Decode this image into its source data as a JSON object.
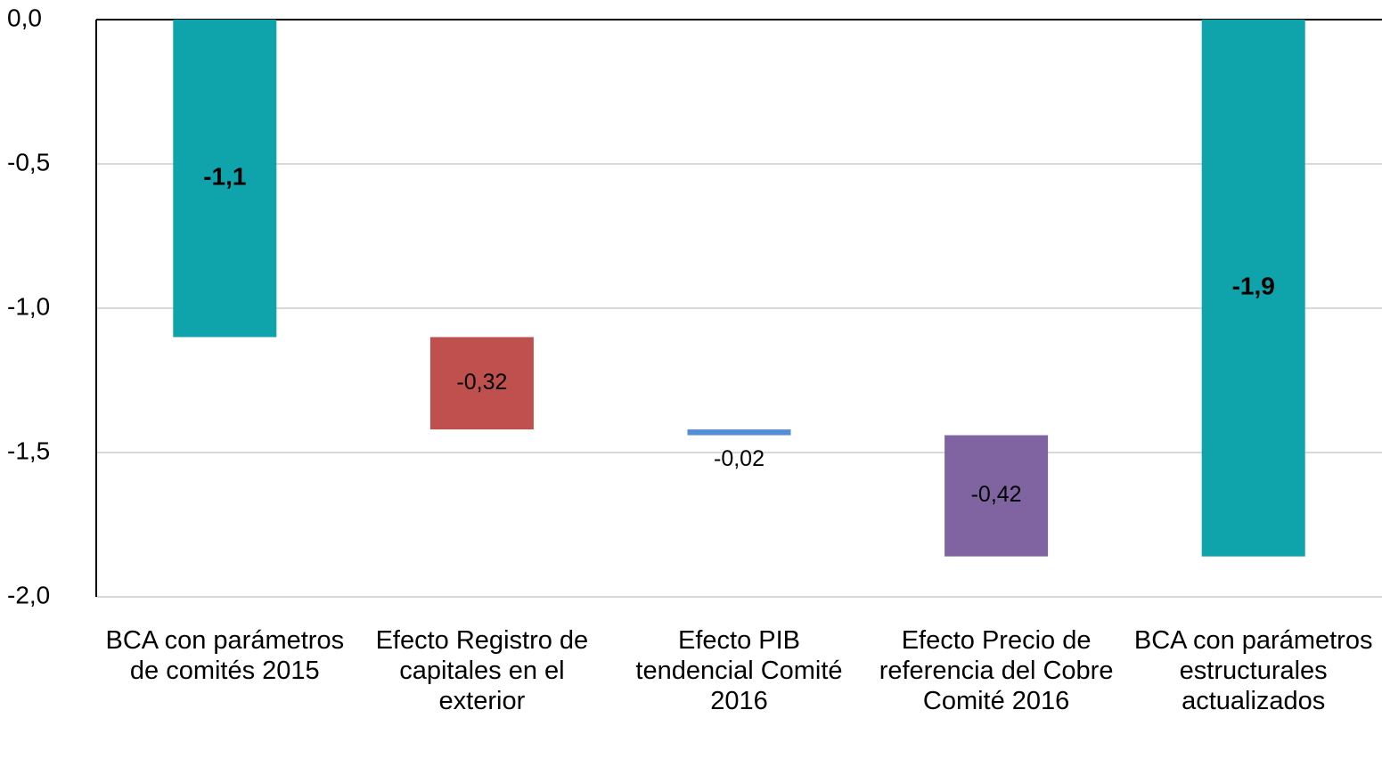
{
  "chart_data": {
    "type": "waterfall",
    "categories": [
      "BCA con parámetros de comités 2015",
      "Efecto Registro de capitales en el exterior",
      "Efecto PIB tendencial Comité 2016",
      "Efecto Precio de referencia del Cobre Comité 2016",
      "BCA con parámetros estructurales actualizados"
    ],
    "values": [
      -1.1,
      -0.32,
      -0.02,
      -0.42,
      -1.86
    ],
    "value_labels": [
      "-1,1",
      "-0,32",
      "-0,02",
      "-0,42",
      "-1,9"
    ],
    "totals": [
      true,
      false,
      false,
      false,
      true
    ],
    "colors": [
      "#0fa3ab",
      "#c0504d",
      "#558ed5",
      "#8064a2",
      "#0fa3ab"
    ],
    "ylim": [
      -2,
      0
    ],
    "yticks": [
      {
        "value": 0,
        "label": "0,0"
      },
      {
        "value": -0.5,
        "label": "-0,5"
      },
      {
        "value": -1,
        "label": "-1,0"
      },
      {
        "value": -1.5,
        "label": "-1,5"
      },
      {
        "value": -2,
        "label": "-2,0"
      }
    ],
    "grid": true
  }
}
